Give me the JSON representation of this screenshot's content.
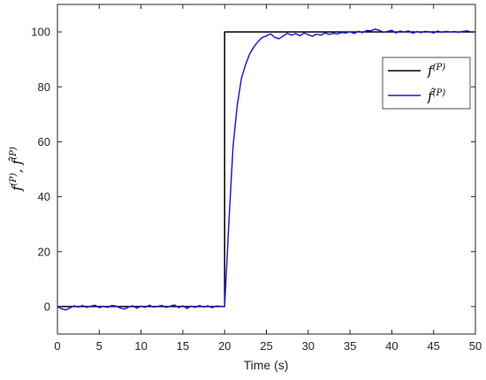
{
  "chart_data": {
    "type": "line",
    "xlabel": "Time (s)",
    "ylabel": "f^{(P)}, f̂^{(P)}",
    "xlim": [
      0,
      50
    ],
    "ylim": [
      -10,
      110
    ],
    "x_ticks": [
      0,
      5,
      10,
      15,
      20,
      25,
      30,
      35,
      40,
      45,
      50
    ],
    "y_ticks": [
      0,
      20,
      40,
      60,
      80,
      100
    ],
    "grid": false,
    "legend_position": "top-right",
    "series": [
      {
        "name": "f^(P)",
        "color": "#000000",
        "x": [
          0,
          20,
          20,
          50
        ],
        "y": [
          0,
          0,
          100,
          100
        ]
      },
      {
        "name": "f̂^(P)",
        "color": "#1f1fcf",
        "x": [
          0,
          0.5,
          1,
          1.5,
          2,
          2.5,
          3,
          3.5,
          4,
          4.5,
          5,
          5.5,
          6,
          6.5,
          7,
          7.5,
          8,
          8.5,
          9,
          9.5,
          10,
          10.5,
          11,
          11.5,
          12,
          12.5,
          13,
          13.5,
          14,
          14.5,
          15,
          15.5,
          16,
          16.5,
          17,
          17.5,
          18,
          18.5,
          19,
          19.5,
          20,
          20.5,
          21,
          21.5,
          22,
          22.5,
          23,
          23.5,
          24,
          24.5,
          25,
          25.5,
          26,
          26.5,
          27,
          27.5,
          28,
          28.5,
          29,
          29.5,
          30,
          30.5,
          31,
          31.5,
          32,
          32.5,
          33,
          33.5,
          34,
          34.5,
          35,
          35.5,
          36,
          36.5,
          37,
          37.5,
          38,
          38.5,
          39,
          39.5,
          40,
          40.5,
          41,
          41.5,
          42,
          42.5,
          43,
          43.5,
          44,
          44.5,
          45,
          45.5,
          46,
          46.5,
          47,
          47.5,
          48,
          48.5,
          49,
          49.5,
          50
        ],
        "y": [
          0,
          -0.8,
          -1.2,
          -0.5,
          0.3,
          -0.2,
          0.4,
          -0.3,
          0.2,
          0.5,
          -0.4,
          0.1,
          -0.3,
          0.4,
          0.2,
          -0.5,
          -0.9,
          -0.2,
          0.3,
          -0.6,
          0.2,
          -0.3,
          0.5,
          -0.2,
          0.1,
          0.4,
          -0.3,
          0.2,
          0.6,
          -0.4,
          0.3,
          -0.7,
          0.2,
          -0.3,
          0.4,
          -0.2,
          0.3,
          -0.4,
          0.2,
          0.1,
          0,
          30,
          58,
          73,
          83,
          88,
          92,
          94.5,
          96.5,
          98,
          98.5,
          99.3,
          98,
          97.5,
          98.5,
          99.5,
          98.8,
          99.4,
          98.6,
          99.6,
          99,
          98.4,
          99.2,
          98.8,
          99.6,
          99.1,
          99.5,
          99.2,
          99.8,
          99.6,
          100,
          99.4,
          100.2,
          99.7,
          100.5,
          100.4,
          101,
          100.6,
          99.8,
          100.2,
          100.6,
          99.6,
          100.3,
          99.9,
          100.4,
          99.5,
          100.1,
          99.7,
          100.2,
          100,
          99.6,
          100.3,
          99.8,
          100.2,
          99.9,
          100.1,
          99.8,
          100.2,
          100.4,
          99.9,
          100
        ]
      }
    ]
  }
}
